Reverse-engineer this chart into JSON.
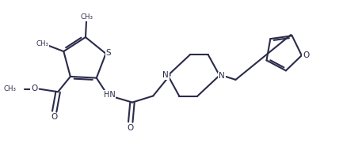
{
  "bg_color": "#ffffff",
  "line_color": "#2b2b4b",
  "line_width": 1.5,
  "figsize": [
    4.33,
    2.0
  ],
  "dpi": 100,
  "xlim": [
    0,
    9.5
  ],
  "ylim": [
    0,
    4.2
  ]
}
